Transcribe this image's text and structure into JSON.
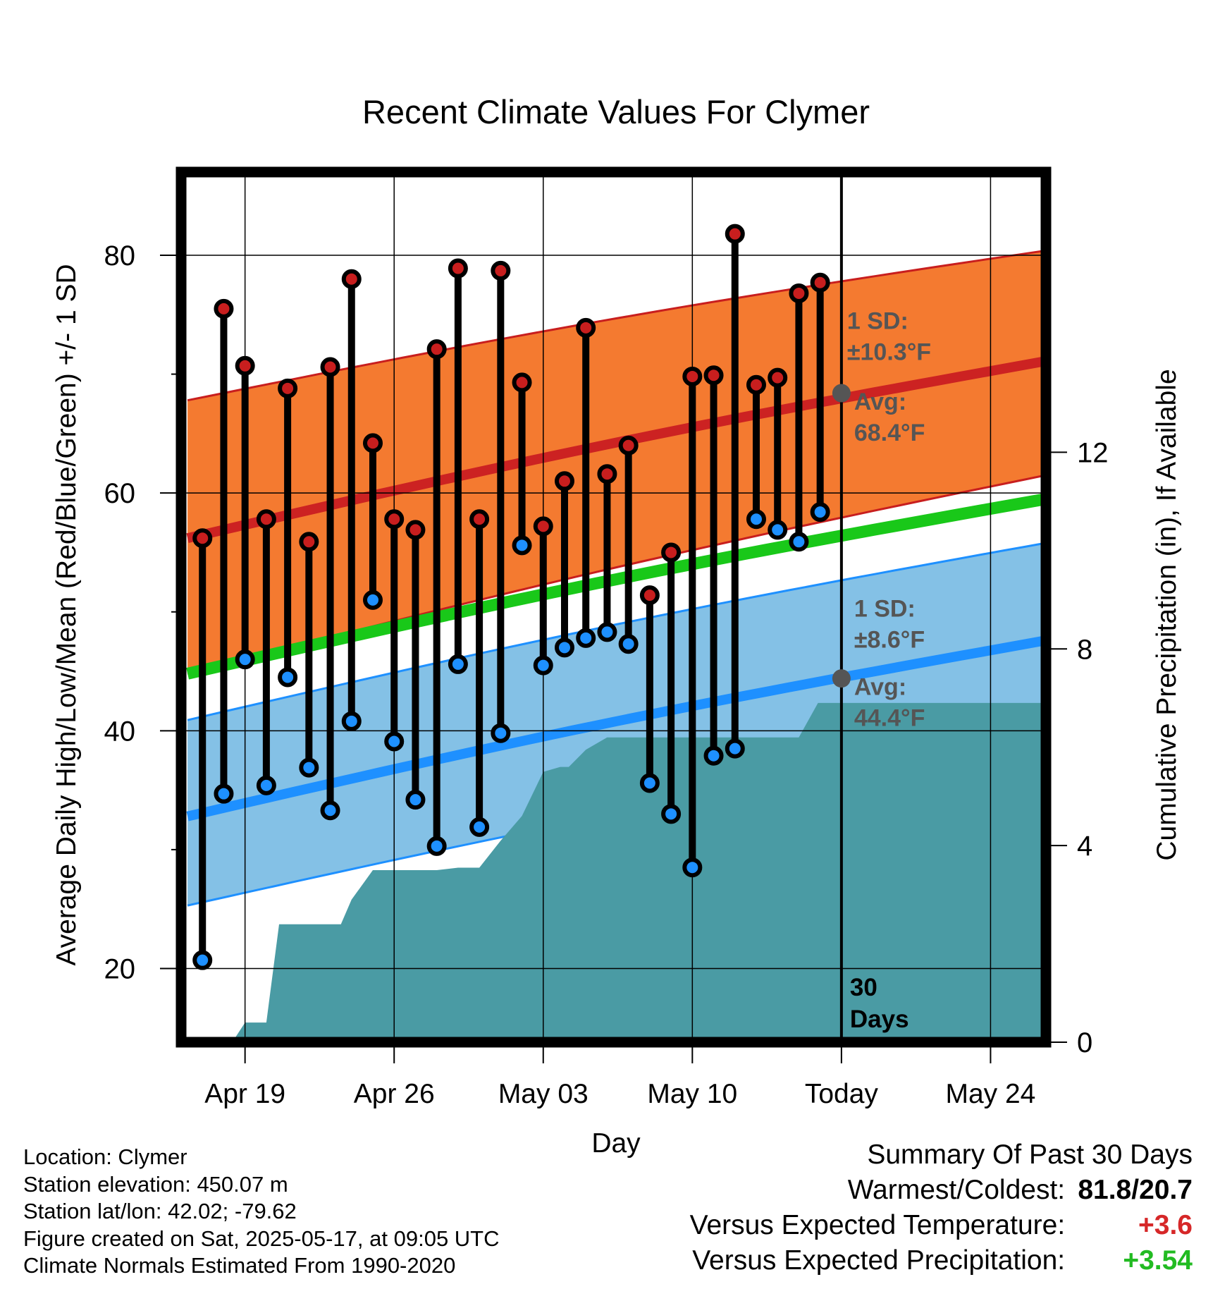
{
  "chart_data": {
    "type": "line",
    "title": "Recent Climate Values For Clymer",
    "xlabel": "Day",
    "ylabel": "Average Daily High/Low/Mean (Red/Blue/Green) +/- 1 SD",
    "y2label": "Cumulative Precipitation (in), If Available",
    "x_tick_labels": [
      "Apr 19",
      "Apr 26",
      "May 03",
      "May 10",
      "Today",
      "May 24"
    ],
    "x_tick_days": [
      0,
      7,
      14,
      21,
      28,
      35
    ],
    "xlim": [
      -3.0,
      37.6
    ],
    "ylim": [
      13.8,
      87.0
    ],
    "y_ticks": [
      20,
      40,
      60,
      80
    ],
    "y2lim": [
      0,
      17.7
    ],
    "y2_ticks": [
      0,
      4,
      8,
      12
    ],
    "grid": true,
    "today_day": 28,
    "days_window_label": "30 Days",
    "normals": {
      "start_day": -2.7,
      "end_day": 37.6,
      "high_mean": [
        56.2,
        71.1
      ],
      "high_upper": [
        67.8,
        80.4
      ],
      "high_lower": [
        44.8,
        61.5
      ],
      "low_mean": [
        32.8,
        47.6
      ],
      "low_upper": [
        40.9,
        55.8
      ],
      "low_lower": [
        25.3,
        39.5
      ],
      "daily_mean": [
        44.8,
        59.5
      ]
    },
    "annotations": {
      "high_sd": "1 SD:",
      "high_sd_val": "±10.3°F",
      "high_avg": "Avg:",
      "high_avg_val": "68.4°F",
      "low_sd": "1 SD:",
      "low_sd_val": "±8.6°F",
      "low_avg": "Avg:",
      "low_avg_val": "44.4°F",
      "today_high_avg": 68.4,
      "today_low_avg": 44.4
    },
    "series": [
      {
        "name": "High",
        "color": "#c81e1e",
        "days": [
          -2,
          -1,
          0,
          1,
          2,
          3,
          4,
          5,
          6,
          7,
          8,
          9,
          10,
          11,
          12,
          13,
          14,
          15,
          16,
          17,
          18,
          19,
          20,
          21,
          22,
          23,
          24,
          25,
          26,
          27
        ],
        "values": [
          56.2,
          75.5,
          70.7,
          57.8,
          68.8,
          55.9,
          70.6,
          78.0,
          64.2,
          57.8,
          56.9,
          72.1,
          78.9,
          57.8,
          78.7,
          69.3,
          57.2,
          61.0,
          73.9,
          61.6,
          64.0,
          51.4,
          55.0,
          69.8,
          69.9,
          81.8,
          69.1,
          69.7,
          76.8,
          77.7
        ]
      },
      {
        "name": "Low",
        "color": "#1e90ff",
        "days": [
          -2,
          -1,
          0,
          1,
          2,
          3,
          4,
          5,
          6,
          7,
          8,
          9,
          10,
          11,
          12,
          13,
          14,
          15,
          16,
          17,
          18,
          19,
          20,
          21,
          22,
          23,
          24,
          25,
          26,
          27
        ],
        "values": [
          20.7,
          34.7,
          46.0,
          35.4,
          44.5,
          36.9,
          33.3,
          40.8,
          51.0,
          39.1,
          34.2,
          30.3,
          45.6,
          31.9,
          39.8,
          55.6,
          45.5,
          47.0,
          47.8,
          48.3,
          47.3,
          35.6,
          33.0,
          28.5,
          37.9,
          38.5,
          57.8,
          56.9,
          55.9,
          58.4
        ]
      }
    ],
    "precipitation": {
      "name": "Cumulative Precipitation",
      "color": "#4a9ba4",
      "days": [
        -0.6,
        0.0,
        1.0,
        1.6,
        2.5,
        3.5,
        4.5,
        5.0,
        6.0,
        7.0,
        8.0,
        9.0,
        10.0,
        11.0,
        12.0,
        13.0,
        14.0,
        14.8,
        15.2,
        16.0,
        17.0,
        17.5,
        18.0,
        20.0,
        22.0,
        24.0,
        25.0,
        26.0,
        26.9,
        37.6
      ],
      "values": [
        0.0,
        0.4,
        0.4,
        2.4,
        2.4,
        2.4,
        2.4,
        2.9,
        3.5,
        3.5,
        3.5,
        3.5,
        3.55,
        3.55,
        4.1,
        4.6,
        5.5,
        5.6,
        5.6,
        5.95,
        6.2,
        6.2,
        6.2,
        6.2,
        6.2,
        6.2,
        6.2,
        6.2,
        6.9,
        6.9
      ]
    }
  },
  "info": {
    "location": "Location: Clymer",
    "elevation": "Station elevation: 450.07 m",
    "latlon": "Station lat/lon: 42.02; -79.62",
    "created": "Figure created on Sat, 2025-05-17, at 09:05 UTC",
    "normals_note": "Climate Normals Estimated From 1990-2020"
  },
  "summary": {
    "title": "Summary Of Past 30 Days",
    "warm_cold_label": "Warmest/Coldest:",
    "warm_cold_value": "81.8/20.7",
    "temp_label": "Versus Expected Temperature:",
    "temp_value": "+3.6",
    "precip_label": "Versus Expected Precipitation:",
    "precip_value": "+3.54",
    "temp_color": "#d62728",
    "precip_color": "#22bb22"
  }
}
